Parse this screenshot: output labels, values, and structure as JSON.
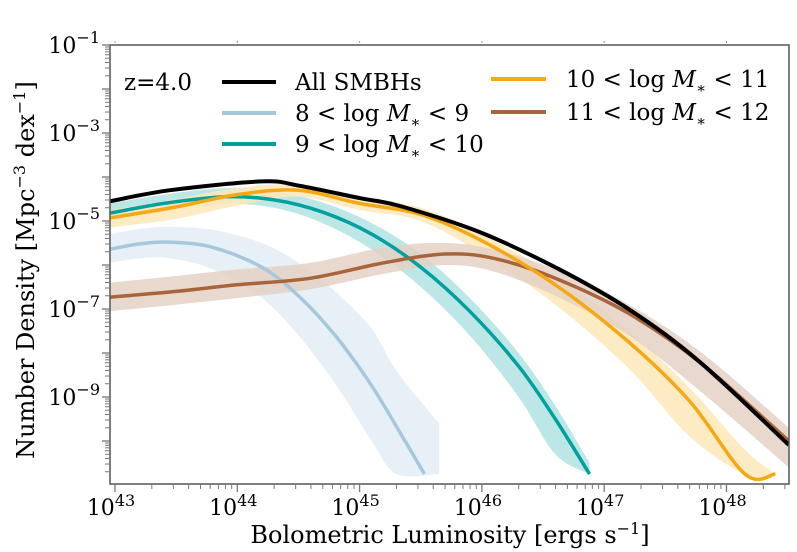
{
  "chart_data": {
    "type": "line",
    "title": "",
    "annotation": "z=4.0",
    "xlabel": "Bolometric Luminosity [ergs s",
    "xlabel_sup": "−1",
    "xlabel_end": "]",
    "ylabel": "Number Density [Mpc",
    "ylabel_sup1": "−3",
    "ylabel_mid": " dex",
    "ylabel_sup2": "−1",
    "ylabel_end": "]",
    "xscale": "log",
    "yscale": "log",
    "xlim_log10": [
      42.96,
      48.51
    ],
    "ylim_log10": [
      -10.75,
      -1
    ],
    "x_ticks": [
      {
        "base": "10",
        "exp": "43",
        "log": 43
      },
      {
        "base": "10",
        "exp": "44",
        "log": 44
      },
      {
        "base": "10",
        "exp": "45",
        "log": 45
      },
      {
        "base": "10",
        "exp": "46",
        "log": 46
      },
      {
        "base": "10",
        "exp": "47",
        "log": 47
      },
      {
        "base": "10",
        "exp": "48",
        "log": 48
      }
    ],
    "y_ticks": [
      {
        "base": "10",
        "exp": "−1",
        "log": -1
      },
      {
        "base": "10",
        "exp": "−3",
        "log": -3
      },
      {
        "base": "10",
        "exp": "−5",
        "log": -5
      },
      {
        "base": "10",
        "exp": "−7",
        "log": -7
      },
      {
        "base": "10",
        "exp": "−9",
        "log": -9
      }
    ],
    "legend_position": "top",
    "series": [
      {
        "name": "All SMBHs",
        "legend": {
          "text": "All SMBHs"
        },
        "color": "#000000",
        "log10_L": [
          42.96,
          43.45,
          44.2,
          44.51,
          45.0,
          45.33,
          45.98,
          46.64,
          47.21,
          47.78,
          48.51
        ],
        "log10_N": [
          -4.55,
          -4.3,
          -4.1,
          -4.2,
          -4.48,
          -4.66,
          -5.25,
          -6.11,
          -7.02,
          -8.2,
          -10.09
        ]
      },
      {
        "name": "8 < log M* < 9",
        "legend": {
          "lo": "8",
          "hi": "9"
        },
        "color": "#a6c8dd",
        "band_color": "#e4edf6",
        "log10_L": [
          42.96,
          43.2,
          43.45,
          43.8,
          44.2,
          44.5,
          44.8,
          45.1,
          45.35,
          45.53
        ],
        "log10_N": [
          -5.64,
          -5.52,
          -5.48,
          -5.6,
          -6.05,
          -6.7,
          -7.6,
          -8.75,
          -9.9,
          -10.75
        ],
        "band_lo": [
          -5.95,
          -5.85,
          -5.85,
          -6.1,
          -6.75,
          -7.6,
          -8.7,
          -10.0,
          -10.75,
          -10.75
        ],
        "band_hi": [
          -5.3,
          -5.18,
          -5.13,
          -5.2,
          -5.5,
          -5.95,
          -6.6,
          -7.45,
          -8.4,
          -9.6
        ],
        "band_L": [
          42.96,
          43.2,
          43.45,
          43.8,
          44.2,
          44.5,
          44.8,
          45.1,
          45.3,
          45.65
        ]
      },
      {
        "name": "9 < log M* < 10",
        "legend": {
          "lo": "9",
          "hi": "10"
        },
        "color": "#00a0a0",
        "band_color": "#b2e2e2",
        "log10_L": [
          42.96,
          43.4,
          43.9,
          44.3,
          44.7,
          45.1,
          45.5,
          45.9,
          46.3,
          46.6,
          46.88
        ],
        "log10_N": [
          -4.82,
          -4.6,
          -4.45,
          -4.52,
          -4.8,
          -5.3,
          -6.05,
          -7.05,
          -8.3,
          -9.5,
          -10.75
        ],
        "band_lo": [
          -5.0,
          -4.8,
          -4.62,
          -4.7,
          -5.05,
          -5.65,
          -6.5,
          -7.6,
          -9.0,
          -10.3,
          -10.75
        ],
        "band_hi": [
          -4.6,
          -4.4,
          -4.25,
          -4.32,
          -4.58,
          -5.05,
          -5.75,
          -6.75,
          -8.0,
          -9.2,
          -10.5
        ]
      },
      {
        "name": "10 < log M* < 11",
        "legend": {
          "lo": "10",
          "hi": "11"
        },
        "color": "#f5a814",
        "band_color": "#fde7b8",
        "log10_L": [
          42.96,
          43.5,
          44.0,
          44.5,
          45.0,
          45.5,
          46.0,
          46.6,
          47.2,
          47.7,
          48.15,
          48.4
        ],
        "log10_N": [
          -4.93,
          -4.68,
          -4.4,
          -4.3,
          -4.6,
          -4.85,
          -5.45,
          -6.45,
          -7.75,
          -9.1,
          -10.75,
          -10.75
        ],
        "band_lo": [
          -5.15,
          -4.95,
          -4.65,
          -4.45,
          -4.75,
          -5.0,
          -5.75,
          -6.9,
          -8.35,
          -9.9,
          -10.75,
          -10.75
        ],
        "band_hi": [
          -4.75,
          -4.5,
          -4.25,
          -4.17,
          -4.45,
          -4.7,
          -5.3,
          -6.25,
          -7.5,
          -8.8,
          -10.2,
          -10.75
        ]
      },
      {
        "name": "11 < log M* < 12",
        "legend": {
          "lo": "11",
          "hi": "12"
        },
        "color": "#a8643a",
        "band_color": "#e4d1c4",
        "log10_L": [
          42.96,
          43.5,
          44.0,
          44.6,
          45.2,
          45.7,
          46.1,
          46.6,
          47.2,
          47.8,
          48.51
        ],
        "log10_N": [
          -6.73,
          -6.6,
          -6.45,
          -6.3,
          -5.95,
          -5.75,
          -5.85,
          -6.3,
          -7.1,
          -8.25,
          -10.0
        ],
        "band_lo": [
          -7.05,
          -6.9,
          -6.75,
          -6.55,
          -6.2,
          -6.0,
          -6.15,
          -6.7,
          -7.6,
          -8.9,
          -10.6
        ],
        "band_hi": [
          -6.4,
          -6.25,
          -6.1,
          -5.95,
          -5.6,
          -5.5,
          -5.65,
          -6.1,
          -6.9,
          -8.0,
          -9.7
        ]
      }
    ]
  }
}
